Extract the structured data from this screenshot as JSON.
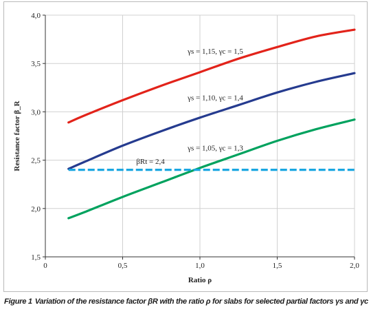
{
  "chart_data": {
    "type": "line",
    "xlabel": "Ratio ρ",
    "ylabel": "Resistance factor β_R",
    "xlim": [
      0,
      2.0
    ],
    "ylim": [
      1.5,
      4.0
    ],
    "x_ticks": [
      0,
      0.5,
      1.0,
      1.5,
      2.0
    ],
    "x_tick_labels": [
      "0",
      "0,5",
      "1,0",
      "1,5",
      "2,0"
    ],
    "y_ticks": [
      1.5,
      2.0,
      2.5,
      3.0,
      3.5,
      4.0
    ],
    "y_tick_labels": [
      "1,5",
      "2,0",
      "2,5",
      "3,0",
      "3,5",
      "4,0"
    ],
    "grid": true,
    "series": [
      {
        "name": "γs = 1,15, γc = 1,5",
        "color": "#e2231a",
        "style": "solid",
        "x": [
          0.15,
          0.25,
          0.5,
          0.75,
          1.0,
          1.25,
          1.5,
          1.75,
          2.0
        ],
        "y": [
          2.89,
          2.96,
          3.12,
          3.27,
          3.41,
          3.55,
          3.67,
          3.78,
          3.85
        ]
      },
      {
        "name": "γs = 1,10, γc = 1,4",
        "color": "#253b8f",
        "style": "solid",
        "x": [
          0.15,
          0.25,
          0.5,
          0.75,
          1.0,
          1.25,
          1.5,
          1.75,
          2.0
        ],
        "y": [
          2.41,
          2.48,
          2.65,
          2.8,
          2.94,
          3.07,
          3.2,
          3.31,
          3.4
        ]
      },
      {
        "name": "γs = 1,05, γc = 1,3",
        "color": "#00a25e",
        "style": "solid",
        "x": [
          0.15,
          0.25,
          0.5,
          0.75,
          1.0,
          1.25,
          1.5,
          1.75,
          2.0
        ],
        "y": [
          1.9,
          1.96,
          2.12,
          2.27,
          2.42,
          2.56,
          2.7,
          2.82,
          2.92
        ]
      },
      {
        "name": "βRt = 2,4",
        "color": "#1ba7e1",
        "style": "dashed",
        "x": [
          0.15,
          2.0
        ],
        "y": [
          2.4,
          2.4
        ]
      }
    ],
    "annotations": [
      {
        "text": "γs = 1,15, γc = 1,5",
        "x": 1.1,
        "y": 3.6,
        "series": 0
      },
      {
        "text": "γs = 1,10, γc = 1,4",
        "x": 1.1,
        "y": 3.12,
        "series": 1
      },
      {
        "text": "γs = 1,05, γc = 1,3",
        "x": 1.1,
        "y": 2.6,
        "series": 2
      },
      {
        "text": "βRt = 2,4",
        "x": 0.68,
        "y": 2.46,
        "series": 3
      }
    ]
  },
  "caption": {
    "label": "Figure 1",
    "text": "Variation of the resistance factor βR with the ratio ρ for slabs for selected partial factors γs and γc"
  }
}
